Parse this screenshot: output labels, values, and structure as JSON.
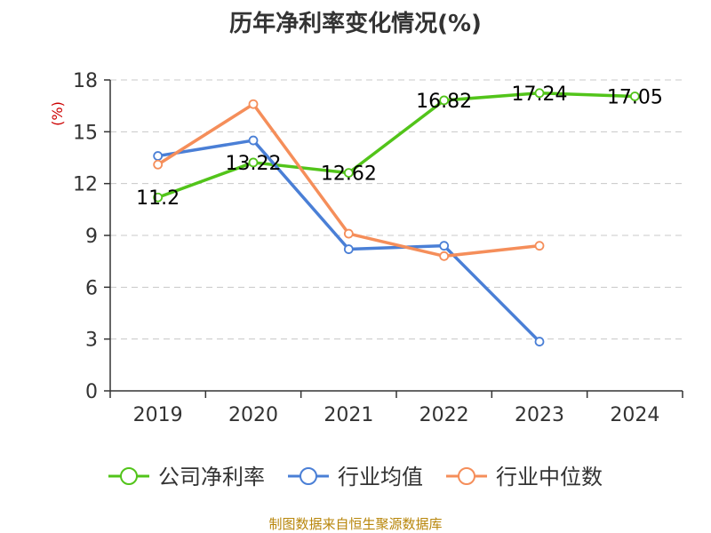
{
  "title": "历年净利率变化情况(%)",
  "source": "制图数据来自恒生聚源数据库",
  "chart_data": {
    "type": "line",
    "title": "历年净利率变化情况(%)",
    "ylabel": "(%)",
    "xlabel": "",
    "categories": [
      "2019",
      "2020",
      "2021",
      "2022",
      "2023",
      "2024"
    ],
    "ylim": [
      0,
      18
    ],
    "yticks": [
      0,
      3,
      6,
      9,
      12,
      15,
      18
    ],
    "grid": true,
    "legend_position": "bottom",
    "series": [
      {
        "name": "公司净利率",
        "color": "#52c41a",
        "values": [
          11.2,
          13.22,
          12.62,
          16.82,
          17.24,
          17.05
        ],
        "labels": [
          "11.2",
          "13.22",
          "12.62",
          "16.82",
          "17.24",
          "17.05"
        ]
      },
      {
        "name": "行业均值",
        "color": "#4a7fd6",
        "values": [
          13.6,
          14.5,
          8.2,
          8.4,
          2.85,
          null
        ]
      },
      {
        "name": "行业中位数",
        "color": "#f58e5a",
        "values": [
          13.1,
          16.6,
          9.1,
          7.8,
          8.4,
          null
        ]
      }
    ]
  }
}
